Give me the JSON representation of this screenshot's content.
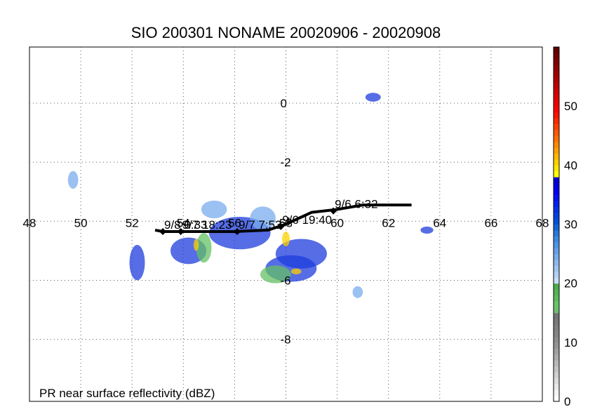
{
  "title": "SIO 200301 NONAME 20020906 - 20020908",
  "footer_label": "PR near surface reflectivity (dBZ)",
  "map": {
    "lon_range": [
      48,
      68
    ],
    "lat_range": [
      -10.1,
      1.9
    ],
    "lon_ticks": [
      48,
      50,
      52,
      54,
      56,
      58,
      60,
      62,
      64,
      66,
      68
    ],
    "lat_ticks": [
      0,
      -2,
      -4,
      -6,
      -8
    ],
    "lon_tick_labels": [
      "48",
      "50",
      "52",
      "54",
      "56",
      "58",
      "60",
      "62",
      "64",
      "66",
      "68"
    ],
    "lat_tick_labels": [
      "0",
      "-2",
      "-4",
      "-6",
      "-8"
    ],
    "grid": "dotted"
  },
  "track": {
    "color": "#000000",
    "points": [
      {
        "lon": 62.9,
        "lat": -3.45
      },
      {
        "lon": 61.0,
        "lat": -3.45
      },
      {
        "lon": 60.0,
        "lat": -3.6
      },
      {
        "lon": 59.0,
        "lat": -3.7
      },
      {
        "lon": 58.0,
        "lat": -4.1
      },
      {
        "lon": 57.3,
        "lat": -4.3
      },
      {
        "lon": 56.0,
        "lat": -4.35
      },
      {
        "lon": 54.0,
        "lat": -4.35
      },
      {
        "lon": 53.2,
        "lat": -4.35
      },
      {
        "lon": 52.9,
        "lat": -4.3
      }
    ],
    "markers": [
      {
        "lon": 59.85,
        "lat": -3.65,
        "label": "9/6 6:32"
      },
      {
        "lon": 57.8,
        "lat": -4.18,
        "label": "9/6 19:40"
      },
      {
        "lon": 56.1,
        "lat": -4.35,
        "label": "9/7 7:53"
      },
      {
        "lon": 53.9,
        "lat": -4.35,
        "label": "9/7 18:23"
      },
      {
        "lon": 53.2,
        "lat": -4.35,
        "label": "9/8 0:33"
      }
    ]
  },
  "colorbar": {
    "min": 0,
    "max": 60,
    "tick_labels": [
      "0",
      "10",
      "20",
      "30",
      "40",
      "50"
    ],
    "tick_values": [
      0,
      10,
      20,
      30,
      40,
      50
    ],
    "colors": [
      "#ffffff",
      "#f4f4f4",
      "#e8e8e8",
      "#dcdcdc",
      "#d0d0d0",
      "#c4c4c4",
      "#b8b8b8",
      "#acacac",
      "#a0a0a0",
      "#949494",
      "#8c8c8c",
      "#848484",
      "#808080",
      "#7a7a7a",
      "#747474",
      "#6cc06c",
      "#64c864",
      "#5cbc5c",
      "#54b454",
      "#4cac4c",
      "#c8dcf8",
      "#b4d0f4",
      "#a0c4f0",
      "#8cb8ec",
      "#78acec",
      "#64a0e8",
      "#5094e4",
      "#3c88e0",
      "#2878dc",
      "#1464d8",
      "#0050d8",
      "#0040e0",
      "#0030e8",
      "#0020f0",
      "#0010f8",
      "#0000f8",
      "#0000e8",
      "#0000d8",
      "#ffff00",
      "#ffe800",
      "#ffd000",
      "#ffb800",
      "#ffa000",
      "#ff8800",
      "#ff7000",
      "#ff5800",
      "#ff4000",
      "#ff2800",
      "#ff1000",
      "#ff0000",
      "#f00000",
      "#e00000",
      "#d00000",
      "#c00000",
      "#b00000",
      "#a00000",
      "#900000",
      "#800000",
      "#700000",
      "#600000"
    ]
  },
  "rain_cells": [
    {
      "lon": 56.2,
      "lat": -4.4,
      "rx": 1.2,
      "ry": 0.55,
      "level": "blue"
    },
    {
      "lon": 58.6,
      "lat": -5.1,
      "rx": 1.0,
      "ry": 0.5,
      "level": "blue"
    },
    {
      "lon": 58.2,
      "lat": -5.6,
      "rx": 1.0,
      "ry": 0.45,
      "level": "blue"
    },
    {
      "lon": 54.2,
      "lat": -5.0,
      "rx": 0.7,
      "ry": 0.45,
      "level": "blue"
    },
    {
      "lon": 52.2,
      "lat": -5.4,
      "rx": 0.3,
      "ry": 0.6,
      "level": "blue"
    },
    {
      "lon": 57.1,
      "lat": -3.9,
      "rx": 0.5,
      "ry": 0.4,
      "level": "light"
    },
    {
      "lon": 55.2,
      "lat": -3.6,
      "rx": 0.5,
      "ry": 0.3,
      "level": "light"
    },
    {
      "lon": 54.8,
      "lat": -4.9,
      "rx": 0.3,
      "ry": 0.5,
      "level": "green"
    },
    {
      "lon": 57.6,
      "lat": -5.8,
      "rx": 0.6,
      "ry": 0.3,
      "level": "green"
    },
    {
      "lon": 58.0,
      "lat": -4.6,
      "rx": 0.15,
      "ry": 0.25,
      "level": "heavy"
    },
    {
      "lon": 58.4,
      "lat": -5.7,
      "rx": 0.2,
      "ry": 0.1,
      "level": "heavy"
    },
    {
      "lon": 54.5,
      "lat": -4.8,
      "rx": 0.1,
      "ry": 0.2,
      "level": "heavy"
    },
    {
      "lon": 61.4,
      "lat": 0.2,
      "rx": 0.3,
      "ry": 0.15,
      "level": "blue"
    },
    {
      "lon": 60.8,
      "lat": -6.4,
      "rx": 0.2,
      "ry": 0.2,
      "level": "light"
    },
    {
      "lon": 63.5,
      "lat": -4.3,
      "rx": 0.25,
      "ry": 0.12,
      "level": "blue"
    },
    {
      "lon": 49.7,
      "lat": -2.6,
      "rx": 0.2,
      "ry": 0.3,
      "level": "light"
    }
  ],
  "colors": {
    "blue": "#1e3cdc",
    "light": "#78acec",
    "green": "#64c064",
    "heavy": "#ffd000"
  }
}
